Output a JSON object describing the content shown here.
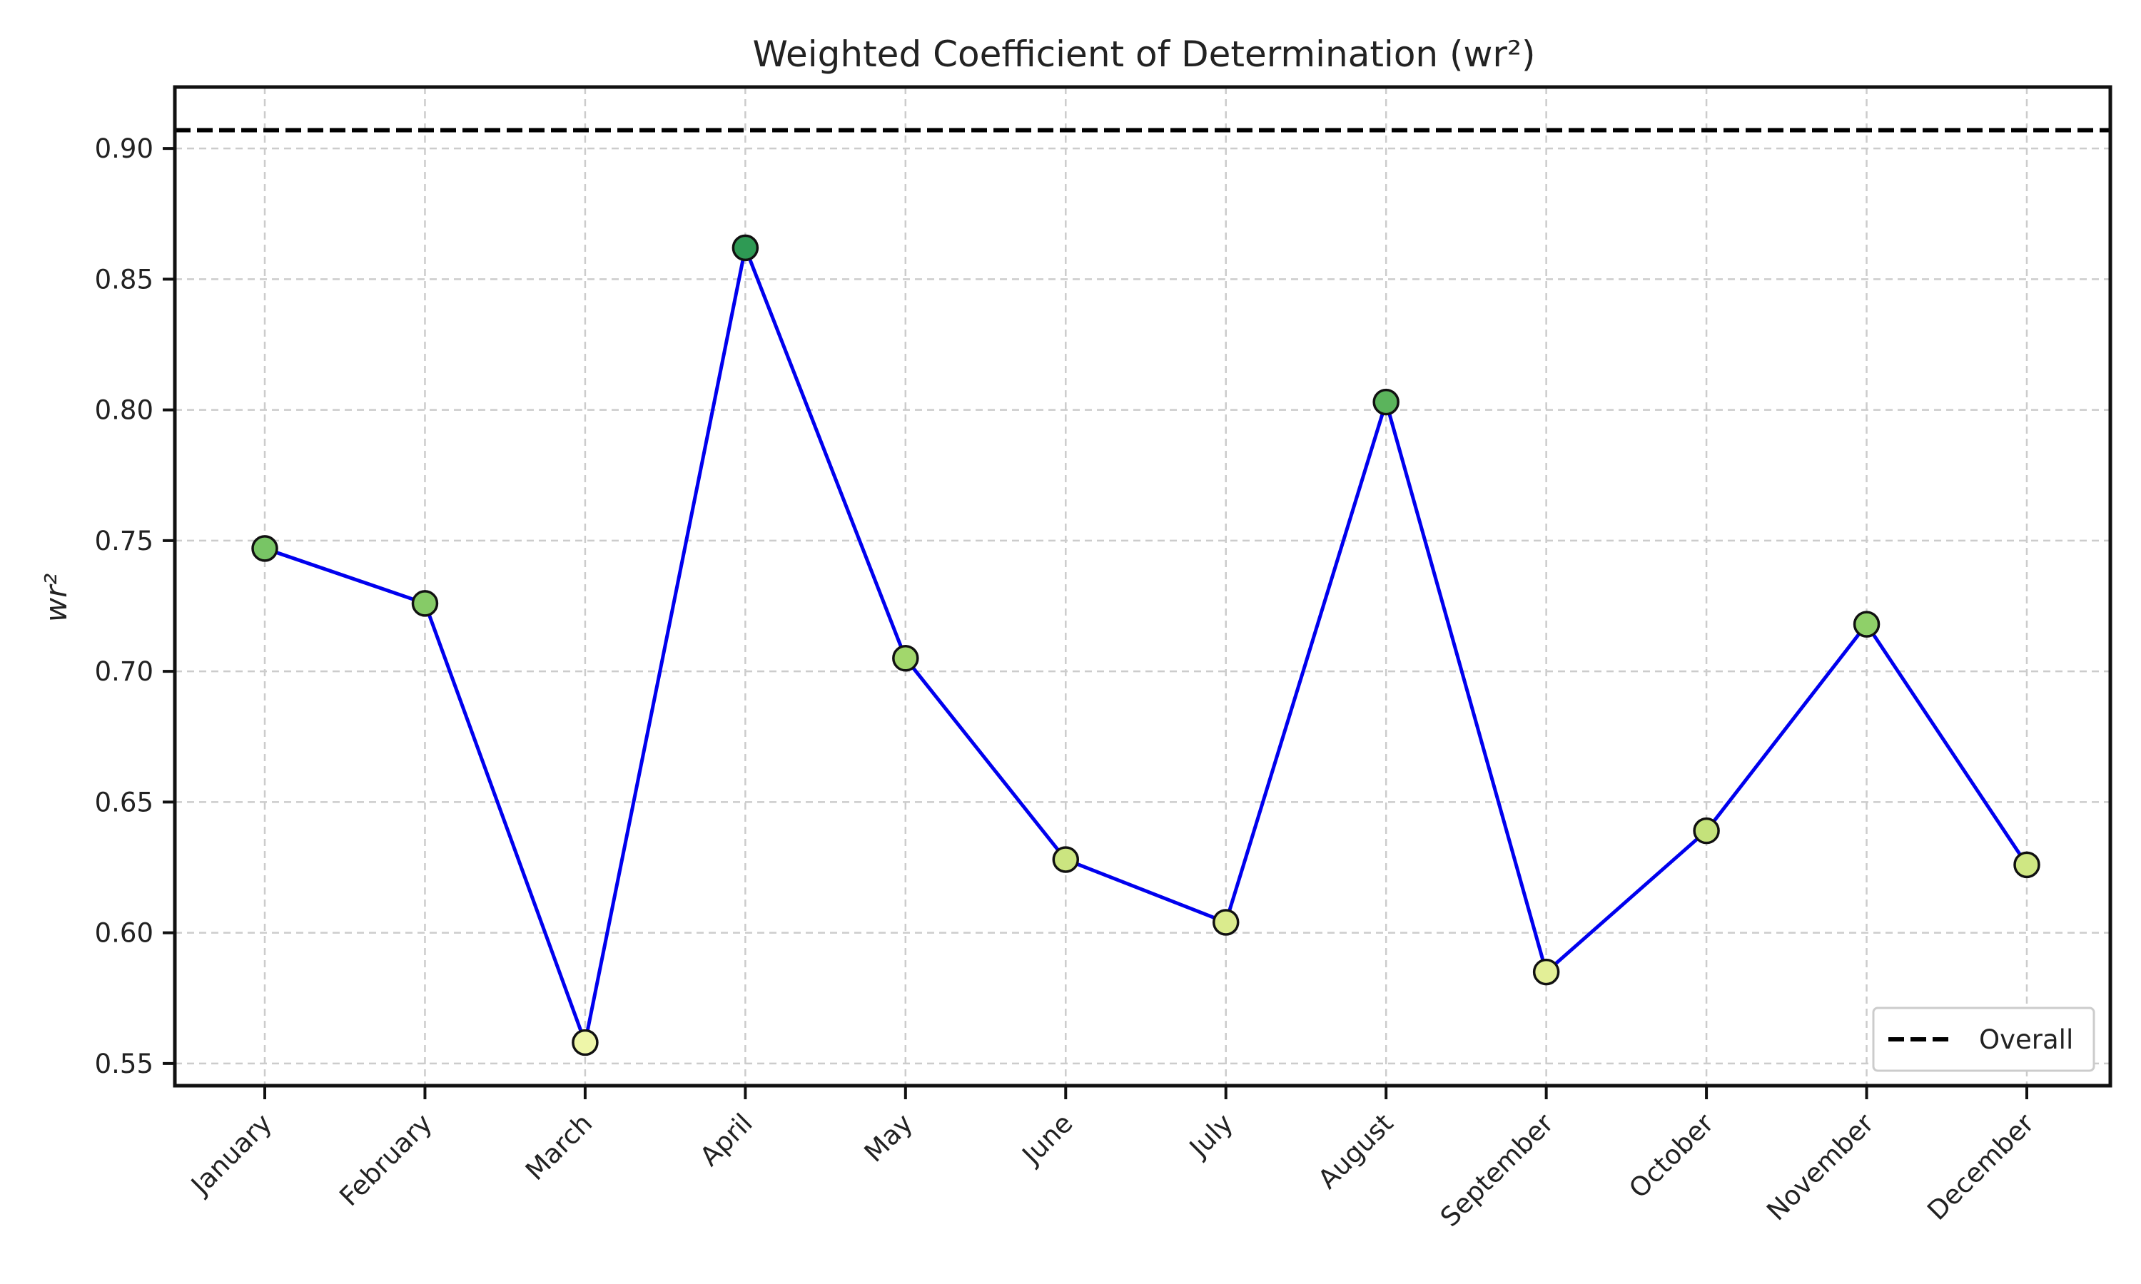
{
  "chart_data": {
    "type": "line",
    "title": "Weighted Coefficient of Determination (wr²)",
    "xlabel": "",
    "ylabel": "wr²",
    "categories": [
      "January",
      "February",
      "March",
      "April",
      "May",
      "June",
      "July",
      "August",
      "September",
      "October",
      "November",
      "December"
    ],
    "series": [
      {
        "values": [
          0.747,
          0.726,
          0.558,
          0.862,
          0.705,
          0.628,
          0.604,
          0.803,
          0.585,
          0.639,
          0.718,
          0.626
        ],
        "line_color": "#0000ee",
        "marker_colors": [
          "#78c565",
          "#86cb67",
          "#eef6a9",
          "#2e9a54",
          "#a2d76c",
          "#cbe580",
          "#daeb8d",
          "#5bb45c",
          "#e3ef97",
          "#c4e27b",
          "#8fd069",
          "#cfe783"
        ]
      }
    ],
    "reference_line": {
      "name": "Overall",
      "value": 0.907,
      "color": "#000000",
      "style": "dashed"
    },
    "yticks": [
      "0.55",
      "0.60",
      "0.65",
      "0.70",
      "0.75",
      "0.80",
      "0.85",
      "0.90"
    ],
    "ylim": [
      0.5415,
      0.9235
    ],
    "grid": true,
    "legend_position": "lower-right"
  }
}
